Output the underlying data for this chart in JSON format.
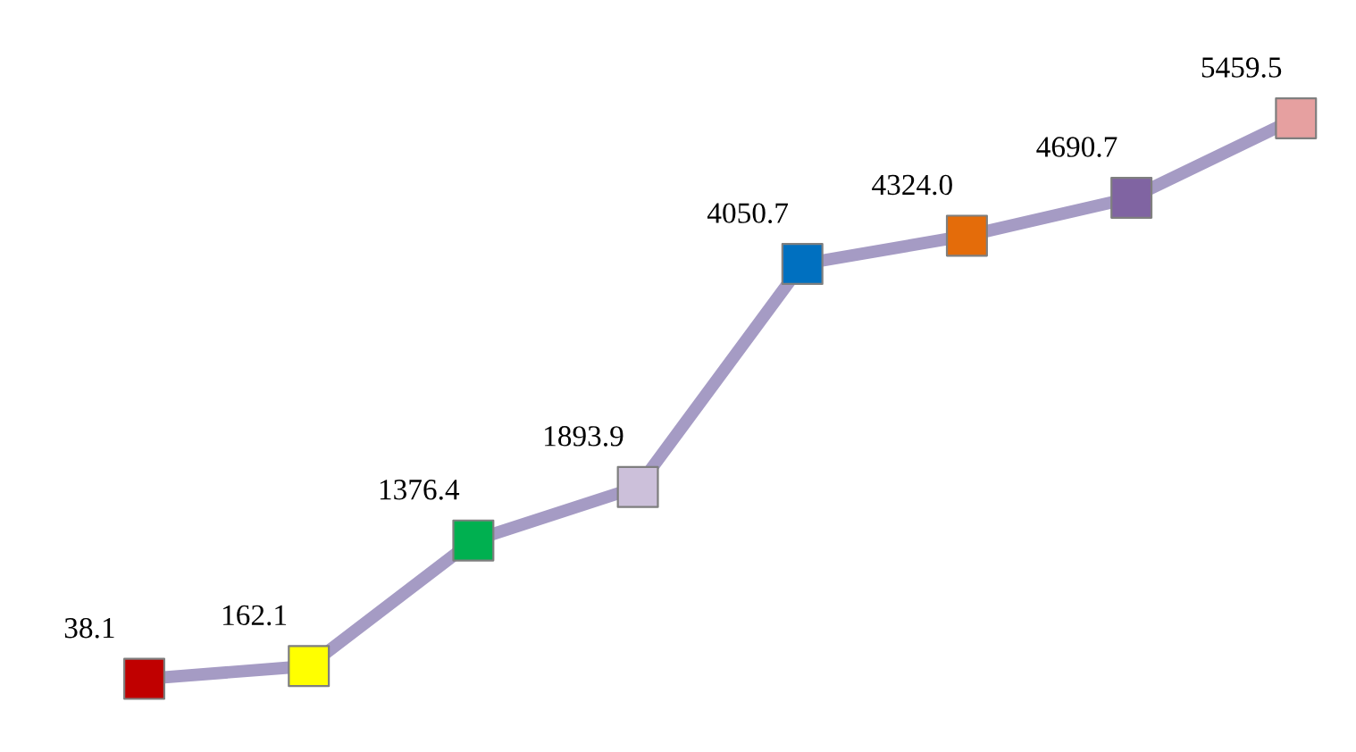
{
  "chart_data": {
    "type": "line",
    "categories": [
      null,
      null,
      null,
      null,
      null,
      null,
      null,
      null
    ],
    "series": [
      {
        "color": "#a59bc4",
        "values": [
          38.1,
          162.1,
          1376.4,
          1893.9,
          4050.7,
          4324.0,
          4690.7,
          5459.5
        ],
        "colors": [
          "#c00000",
          "#ffff00",
          "#00b050",
          "#ccc0da",
          "#0070c0",
          "#e46c0a",
          "#8064a2",
          "#e6a0a0"
        ],
        "value_labels": [
          "38.1",
          "162.1",
          "1376.4",
          "1893.9",
          "4050.7",
          "4324.0",
          "4690.7",
          "5459.5"
        ]
      }
    ],
    "marker": "square",
    "line_style": "solid",
    "grid": false,
    "legend": false
  }
}
